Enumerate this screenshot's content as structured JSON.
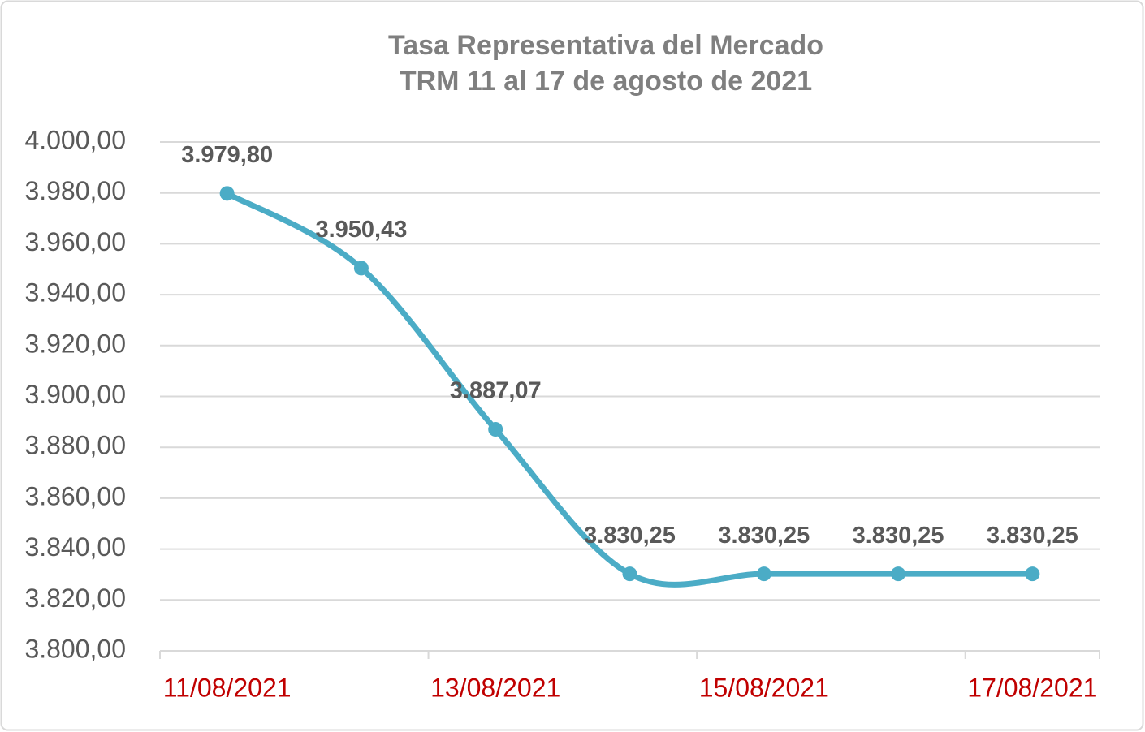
{
  "chart_data": {
    "type": "line",
    "title": "Tasa Representativa del Mercado",
    "subtitle": "TRM 11 al 17 de agosto de 2021",
    "categories": [
      "11/08/2021",
      null,
      "13/08/2021",
      null,
      "15/08/2021",
      null,
      "17/08/2021"
    ],
    "series": [
      {
        "name": "TRM",
        "color": "#4bacc6",
        "values": [
          3979.8,
          3950.43,
          3887.07,
          3830.25,
          3830.25,
          3830.25,
          3830.25
        ],
        "value_labels": [
          "3.979,80",
          "3.950,43",
          "3.887,07",
          "3.830,25",
          "3.830,25",
          "3.830,25",
          "3.830,25"
        ]
      }
    ],
    "ylim": [
      3800,
      4000
    ],
    "yticks": [
      {
        "value": 3800,
        "label": "3.800,00"
      },
      {
        "value": 3820,
        "label": "3.820,00"
      },
      {
        "value": 3840,
        "label": "3.840,00"
      },
      {
        "value": 3860,
        "label": "3.860,00"
      },
      {
        "value": 3880,
        "label": "3.880,00"
      },
      {
        "value": 3900,
        "label": "3.900,00"
      },
      {
        "value": 3920,
        "label": "3.920,00"
      },
      {
        "value": 3940,
        "label": "3.940,00"
      },
      {
        "value": 3960,
        "label": "3.960,00"
      },
      {
        "value": 3980,
        "label": "3.980,00"
      },
      {
        "value": 4000,
        "label": "4.000,00"
      }
    ],
    "grid": true,
    "smooth": true
  }
}
